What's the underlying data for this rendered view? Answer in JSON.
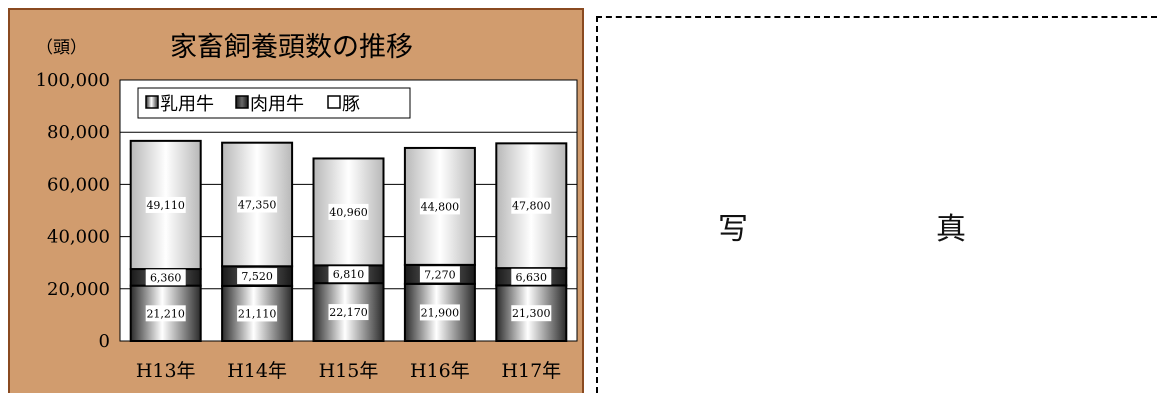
{
  "chart_data": {
    "type": "bar",
    "stacked": true,
    "title": "家畜飼養頭数の推移",
    "unit_label": "（頭）",
    "categories": [
      "H13年",
      "H14年",
      "H15年",
      "H16年",
      "H17年"
    ],
    "y_ticks": [
      "100,000",
      "80,000",
      "60,000",
      "40,000",
      "20,000",
      "0"
    ],
    "ylim": [
      0,
      100000
    ],
    "grid": true,
    "legend_position": "top",
    "series": [
      {
        "name": "乳用牛",
        "values": [
          21210,
          21110,
          22170,
          21900,
          21300
        ],
        "labels": [
          "21,210",
          "21,110",
          "22,170",
          "21,900",
          "21,300"
        ],
        "color": "#555555"
      },
      {
        "name": "肉用牛",
        "values": [
          6360,
          7520,
          6810,
          7270,
          6630
        ],
        "labels": [
          "6,360",
          "7,520",
          "6,810",
          "7,270",
          "6,630"
        ],
        "color": "#2a2a2a"
      },
      {
        "name": "豚",
        "values": [
          49110,
          47350,
          40960,
          44800,
          47800
        ],
        "labels": [
          "49,110",
          "47,350",
          "40,960",
          "44,800",
          "47,800"
        ],
        "color": "#f4f4f4"
      }
    ]
  },
  "photo": {
    "char1": "写",
    "char2": "真"
  }
}
